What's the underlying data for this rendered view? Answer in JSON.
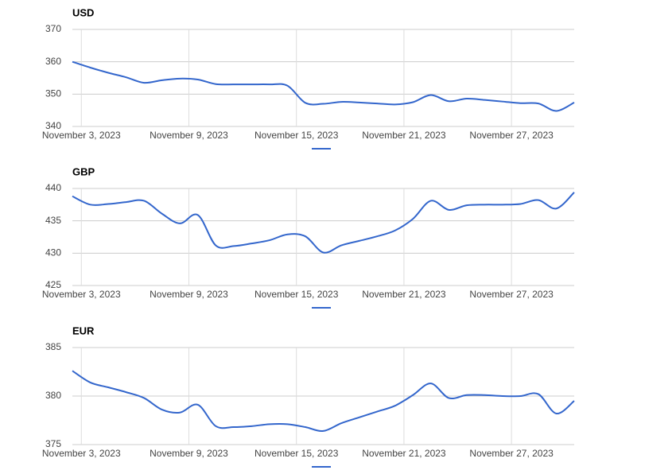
{
  "chart_data": [
    {
      "type": "line",
      "title": "USD",
      "x": [
        "2023-11-02T12:00",
        "2023-11-03T12:00",
        "2023-11-04T12:00",
        "2023-11-05T12:00",
        "2023-11-06T12:00",
        "2023-11-07T12:00",
        "2023-11-08T12:00",
        "2023-11-09T12:00",
        "2023-11-10T12:00",
        "2023-11-11T12:00",
        "2023-11-12T12:00",
        "2023-11-13T12:00",
        "2023-11-14T12:00",
        "2023-11-15T12:00",
        "2023-11-16T12:00",
        "2023-11-17T12:00",
        "2023-11-18T12:00",
        "2023-11-19T12:00",
        "2023-11-20T12:00",
        "2023-11-21T12:00",
        "2023-11-22T12:00",
        "2023-11-23T12:00",
        "2023-11-24T12:00",
        "2023-11-25T12:00",
        "2023-11-26T12:00",
        "2023-11-27T12:00",
        "2023-11-28T12:00",
        "2023-11-29T12:00",
        "2023-11-30T12:00"
      ],
      "series": [
        {
          "color": "#3366cc",
          "values": [
            360,
            358.2,
            356.6,
            355.2,
            353.5,
            354.3,
            354.8,
            354.5,
            353.1,
            353,
            353,
            353,
            352.6,
            347.3,
            347,
            347.6,
            347.4,
            347.1,
            346.8,
            347.5,
            349.7,
            347.8,
            348.6,
            348.2,
            347.7,
            347.2,
            347.1,
            344.8,
            347.4
          ]
        }
      ],
      "xlim": [
        "2023-11-02T12:00",
        "2023-11-30T12:00"
      ],
      "xticks": [
        {
          "value": "2023-11-03T00:00",
          "label": "November 3, 2023"
        },
        {
          "value": "2023-11-09T00:00",
          "label": "November 9, 2023"
        },
        {
          "value": "2023-11-15T00:00",
          "label": "November 15, 2023"
        },
        {
          "value": "2023-11-21T00:00",
          "label": "November 21, 2023"
        },
        {
          "value": "2023-11-27T00:00",
          "label": "November 27, 2023"
        }
      ],
      "ylim": [
        340,
        370
      ],
      "yticks": [
        340,
        350,
        360,
        370
      ],
      "grid": true
    },
    {
      "type": "line",
      "title": "GBP",
      "x": [
        "2023-11-02T12:00",
        "2023-11-03T12:00",
        "2023-11-04T12:00",
        "2023-11-05T12:00",
        "2023-11-06T12:00",
        "2023-11-07T12:00",
        "2023-11-08T12:00",
        "2023-11-09T12:00",
        "2023-11-10T12:00",
        "2023-11-11T12:00",
        "2023-11-12T12:00",
        "2023-11-13T12:00",
        "2023-11-14T12:00",
        "2023-11-15T12:00",
        "2023-11-16T12:00",
        "2023-11-17T12:00",
        "2023-11-18T12:00",
        "2023-11-19T12:00",
        "2023-11-20T12:00",
        "2023-11-21T12:00",
        "2023-11-22T12:00",
        "2023-11-23T12:00",
        "2023-11-24T12:00",
        "2023-11-25T12:00",
        "2023-11-26T12:00",
        "2023-11-27T12:00",
        "2023-11-28T12:00",
        "2023-11-29T12:00",
        "2023-11-30T12:00"
      ],
      "series": [
        {
          "color": "#3366cc",
          "values": [
            438.8,
            437.5,
            437.6,
            437.9,
            438.1,
            436.1,
            434.6,
            435.9,
            431.2,
            431.1,
            431.5,
            432,
            432.9,
            432.6,
            430.1,
            431.2,
            431.9,
            432.6,
            433.5,
            435.3,
            438.1,
            436.7,
            437.4,
            437.5,
            437.5,
            437.6,
            438.2,
            436.9,
            439.4
          ]
        }
      ],
      "xlim": [
        "2023-11-02T12:00",
        "2023-11-30T12:00"
      ],
      "xticks": [
        {
          "value": "2023-11-03T00:00",
          "label": "November 3, 2023"
        },
        {
          "value": "2023-11-09T00:00",
          "label": "November 9, 2023"
        },
        {
          "value": "2023-11-15T00:00",
          "label": "November 15, 2023"
        },
        {
          "value": "2023-11-21T00:00",
          "label": "November 21, 2023"
        },
        {
          "value": "2023-11-27T00:00",
          "label": "November 27, 2023"
        }
      ],
      "ylim": [
        425,
        440
      ],
      "yticks": [
        425,
        430,
        435,
        440
      ],
      "grid": true
    },
    {
      "type": "line",
      "title": "EUR",
      "x": [
        "2023-11-02T12:00",
        "2023-11-03T12:00",
        "2023-11-04T12:00",
        "2023-11-05T12:00",
        "2023-11-06T12:00",
        "2023-11-07T12:00",
        "2023-11-08T12:00",
        "2023-11-09T12:00",
        "2023-11-10T12:00",
        "2023-11-11T12:00",
        "2023-11-12T12:00",
        "2023-11-13T12:00",
        "2023-11-14T12:00",
        "2023-11-15T12:00",
        "2023-11-16T12:00",
        "2023-11-17T12:00",
        "2023-11-18T12:00",
        "2023-11-19T12:00",
        "2023-11-20T12:00",
        "2023-11-21T12:00",
        "2023-11-22T12:00",
        "2023-11-23T12:00",
        "2023-11-24T12:00",
        "2023-11-25T12:00",
        "2023-11-26T12:00",
        "2023-11-27T12:00",
        "2023-11-28T12:00",
        "2023-11-29T12:00",
        "2023-11-30T12:00"
      ],
      "series": [
        {
          "color": "#3366cc",
          "values": [
            382.6,
            381.4,
            380.9,
            380.4,
            379.8,
            378.6,
            378.3,
            379.1,
            376.9,
            376.8,
            376.9,
            377.1,
            377.1,
            376.8,
            376.4,
            377.2,
            377.8,
            378.4,
            379,
            380.1,
            381.3,
            379.8,
            380.1,
            380.1,
            380,
            380,
            380.2,
            378.2,
            379.5
          ]
        }
      ],
      "xlim": [
        "2023-11-02T12:00",
        "2023-11-30T12:00"
      ],
      "xticks": [
        {
          "value": "2023-11-03T00:00",
          "label": "November 3, 2023"
        },
        {
          "value": "2023-11-09T00:00",
          "label": "November 9, 2023"
        },
        {
          "value": "2023-11-15T00:00",
          "label": "November 15, 2023"
        },
        {
          "value": "2023-11-21T00:00",
          "label": "November 21, 2023"
        },
        {
          "value": "2023-11-27T00:00",
          "label": "November 27, 2023"
        }
      ],
      "ylim": [
        375,
        385
      ],
      "yticks": [
        375,
        380,
        385
      ],
      "grid": true
    }
  ]
}
